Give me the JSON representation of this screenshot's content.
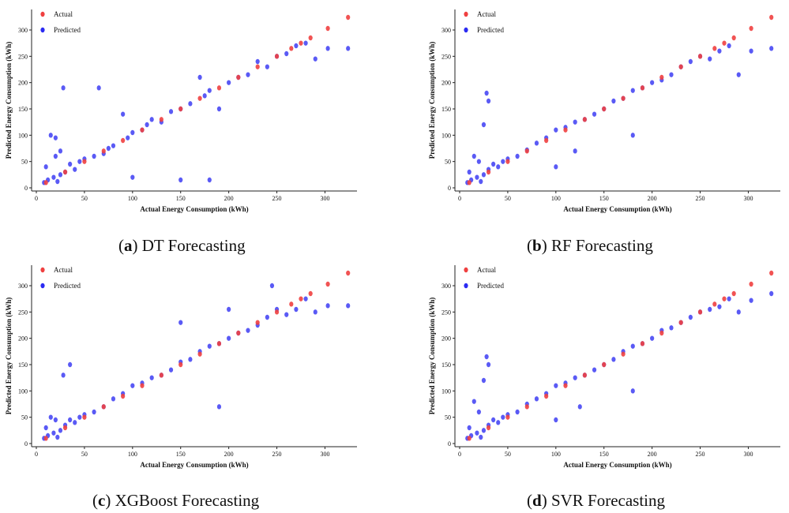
{
  "colors": {
    "actual": "#ef4040",
    "predicted": "#2b2bf2"
  },
  "captions": [
    {
      "letter": "a",
      "text": "DT Forecasting"
    },
    {
      "letter": "b",
      "text": "RF Forecasting"
    },
    {
      "letter": "c",
      "text": "XGBoost Forecasting"
    },
    {
      "letter": "d",
      "text": "SVR Forecasting"
    }
  ],
  "chart_data": [
    {
      "type": "scatter",
      "title": "",
      "xlabel": "Actual Energy Consumption (kWh)",
      "ylabel": "Predicted Energy Consumption (kWh)",
      "xlim": [
        0,
        330
      ],
      "ylim": [
        0,
        330
      ],
      "xticks": [
        0,
        50,
        100,
        150,
        200,
        250,
        300
      ],
      "yticks": [
        0,
        50,
        100,
        150,
        200,
        250,
        300
      ],
      "legend": "top-left",
      "series": [
        {
          "name": "Actual",
          "x": [
            10,
            30,
            50,
            70,
            90,
            110,
            130,
            150,
            170,
            190,
            210,
            230,
            250,
            265,
            275,
            285,
            303,
            324
          ],
          "y": [
            10,
            30,
            50,
            70,
            90,
            110,
            130,
            150,
            170,
            190,
            210,
            230,
            250,
            265,
            275,
            285,
            303,
            324
          ]
        },
        {
          "name": "Predicted",
          "x": [
            8,
            10,
            12,
            15,
            18,
            20,
            22,
            25,
            28,
            30,
            35,
            40,
            45,
            50,
            60,
            65,
            70,
            75,
            80,
            90,
            95,
            100,
            110,
            115,
            120,
            130,
            140,
            150,
            160,
            170,
            175,
            180,
            190,
            200,
            210,
            220,
            230,
            240,
            250,
            260,
            270,
            280,
            290,
            303,
            324,
            20,
            25,
            100,
            150,
            180
          ],
          "y": [
            10,
            40,
            15,
            100,
            20,
            60,
            12,
            25,
            190,
            30,
            45,
            35,
            50,
            55,
            60,
            190,
            65,
            75,
            80,
            140,
            95,
            105,
            110,
            120,
            130,
            125,
            145,
            150,
            160,
            210,
            175,
            185,
            150,
            200,
            210,
            215,
            240,
            230,
            250,
            255,
            270,
            275,
            245,
            265,
            265,
            95,
            70,
            20,
            15,
            15
          ]
        }
      ]
    },
    {
      "type": "scatter",
      "title": "",
      "xlabel": "Actual Energy Consumption (kWh)",
      "ylabel": "Predicted Energy Consumption (kWh)",
      "xlim": [
        0,
        330
      ],
      "ylim": [
        0,
        330
      ],
      "xticks": [
        0,
        50,
        100,
        150,
        200,
        250,
        300
      ],
      "yticks": [
        0,
        50,
        100,
        150,
        200,
        250,
        300
      ],
      "legend": "top-left",
      "series": [
        {
          "name": "Actual",
          "x": [
            10,
            30,
            50,
            70,
            90,
            110,
            130,
            150,
            170,
            190,
            210,
            230,
            250,
            265,
            275,
            285,
            303,
            324
          ],
          "y": [
            10,
            30,
            50,
            70,
            90,
            110,
            130,
            150,
            170,
            190,
            210,
            230,
            250,
            265,
            275,
            285,
            303,
            324
          ]
        },
        {
          "name": "Predicted",
          "x": [
            8,
            10,
            12,
            15,
            18,
            20,
            22,
            25,
            28,
            30,
            35,
            40,
            45,
            50,
            60,
            70,
            80,
            90,
            100,
            110,
            120,
            130,
            140,
            150,
            160,
            170,
            180,
            190,
            200,
            210,
            220,
            230,
            240,
            250,
            260,
            270,
            280,
            290,
            303,
            324,
            25,
            30,
            100,
            120,
            180
          ],
          "y": [
            10,
            30,
            15,
            60,
            20,
            50,
            12,
            25,
            180,
            35,
            45,
            40,
            50,
            55,
            60,
            72,
            85,
            95,
            110,
            115,
            125,
            130,
            140,
            150,
            165,
            170,
            185,
            190,
            200,
            205,
            215,
            230,
            240,
            250,
            245,
            260,
            270,
            215,
            260,
            265,
            120,
            165,
            40,
            70,
            100
          ]
        }
      ]
    },
    {
      "type": "scatter",
      "title": "",
      "xlabel": "Actual Energy Consumption (kWh)",
      "ylabel": "Predicted Energy Consumption (kWh)",
      "xlim": [
        0,
        330
      ],
      "ylim": [
        0,
        330
      ],
      "xticks": [
        0,
        50,
        100,
        150,
        200,
        250,
        300
      ],
      "yticks": [
        0,
        50,
        100,
        150,
        200,
        250,
        300
      ],
      "legend": "top-left",
      "series": [
        {
          "name": "Actual",
          "x": [
            10,
            30,
            50,
            70,
            90,
            110,
            130,
            150,
            170,
            190,
            210,
            230,
            250,
            265,
            275,
            285,
            303,
            324
          ],
          "y": [
            10,
            30,
            50,
            70,
            90,
            110,
            130,
            150,
            170,
            190,
            210,
            230,
            250,
            265,
            275,
            285,
            303,
            324
          ]
        },
        {
          "name": "Predicted",
          "x": [
            8,
            10,
            12,
            15,
            18,
            20,
            22,
            25,
            28,
            30,
            35,
            40,
            45,
            50,
            60,
            70,
            80,
            90,
            100,
            110,
            120,
            130,
            140,
            150,
            160,
            170,
            180,
            190,
            200,
            210,
            220,
            230,
            240,
            250,
            260,
            270,
            280,
            290,
            303,
            324,
            35,
            150,
            190,
            200,
            245
          ],
          "y": [
            10,
            30,
            15,
            50,
            20,
            45,
            12,
            25,
            130,
            35,
            45,
            40,
            50,
            55,
            60,
            70,
            85,
            95,
            110,
            115,
            125,
            130,
            140,
            155,
            160,
            175,
            185,
            190,
            200,
            210,
            215,
            225,
            240,
            255,
            245,
            255,
            275,
            250,
            262,
            262,
            150,
            230,
            70,
            255,
            300
          ]
        }
      ]
    },
    {
      "type": "scatter",
      "title": "",
      "xlabel": "Actual Energy Consumption (kWh)",
      "ylabel": "Predicted Energy Consumption (kWh)",
      "xlim": [
        0,
        330
      ],
      "ylim": [
        0,
        330
      ],
      "xticks": [
        0,
        50,
        100,
        150,
        200,
        250,
        300
      ],
      "yticks": [
        0,
        50,
        100,
        150,
        200,
        250,
        300
      ],
      "legend": "top-left",
      "series": [
        {
          "name": "Actual",
          "x": [
            10,
            30,
            50,
            70,
            90,
            110,
            130,
            150,
            170,
            190,
            210,
            230,
            250,
            265,
            275,
            285,
            303,
            324
          ],
          "y": [
            10,
            30,
            50,
            70,
            90,
            110,
            130,
            150,
            170,
            190,
            210,
            230,
            250,
            265,
            275,
            285,
            303,
            324
          ]
        },
        {
          "name": "Predicted",
          "x": [
            8,
            10,
            12,
            15,
            18,
            20,
            22,
            25,
            28,
            30,
            35,
            40,
            45,
            50,
            60,
            70,
            80,
            90,
            100,
            110,
            120,
            130,
            140,
            150,
            160,
            170,
            180,
            190,
            200,
            210,
            220,
            230,
            240,
            250,
            260,
            270,
            280,
            290,
            303,
            324,
            25,
            30,
            100,
            125,
            180
          ],
          "y": [
            10,
            30,
            15,
            80,
            20,
            60,
            12,
            25,
            165,
            35,
            45,
            40,
            50,
            55,
            60,
            75,
            85,
            95,
            110,
            115,
            125,
            130,
            140,
            150,
            160,
            175,
            185,
            190,
            200,
            215,
            220,
            230,
            240,
            250,
            255,
            260,
            275,
            250,
            272,
            285,
            120,
            150,
            45,
            70,
            100
          ]
        }
      ]
    }
  ]
}
